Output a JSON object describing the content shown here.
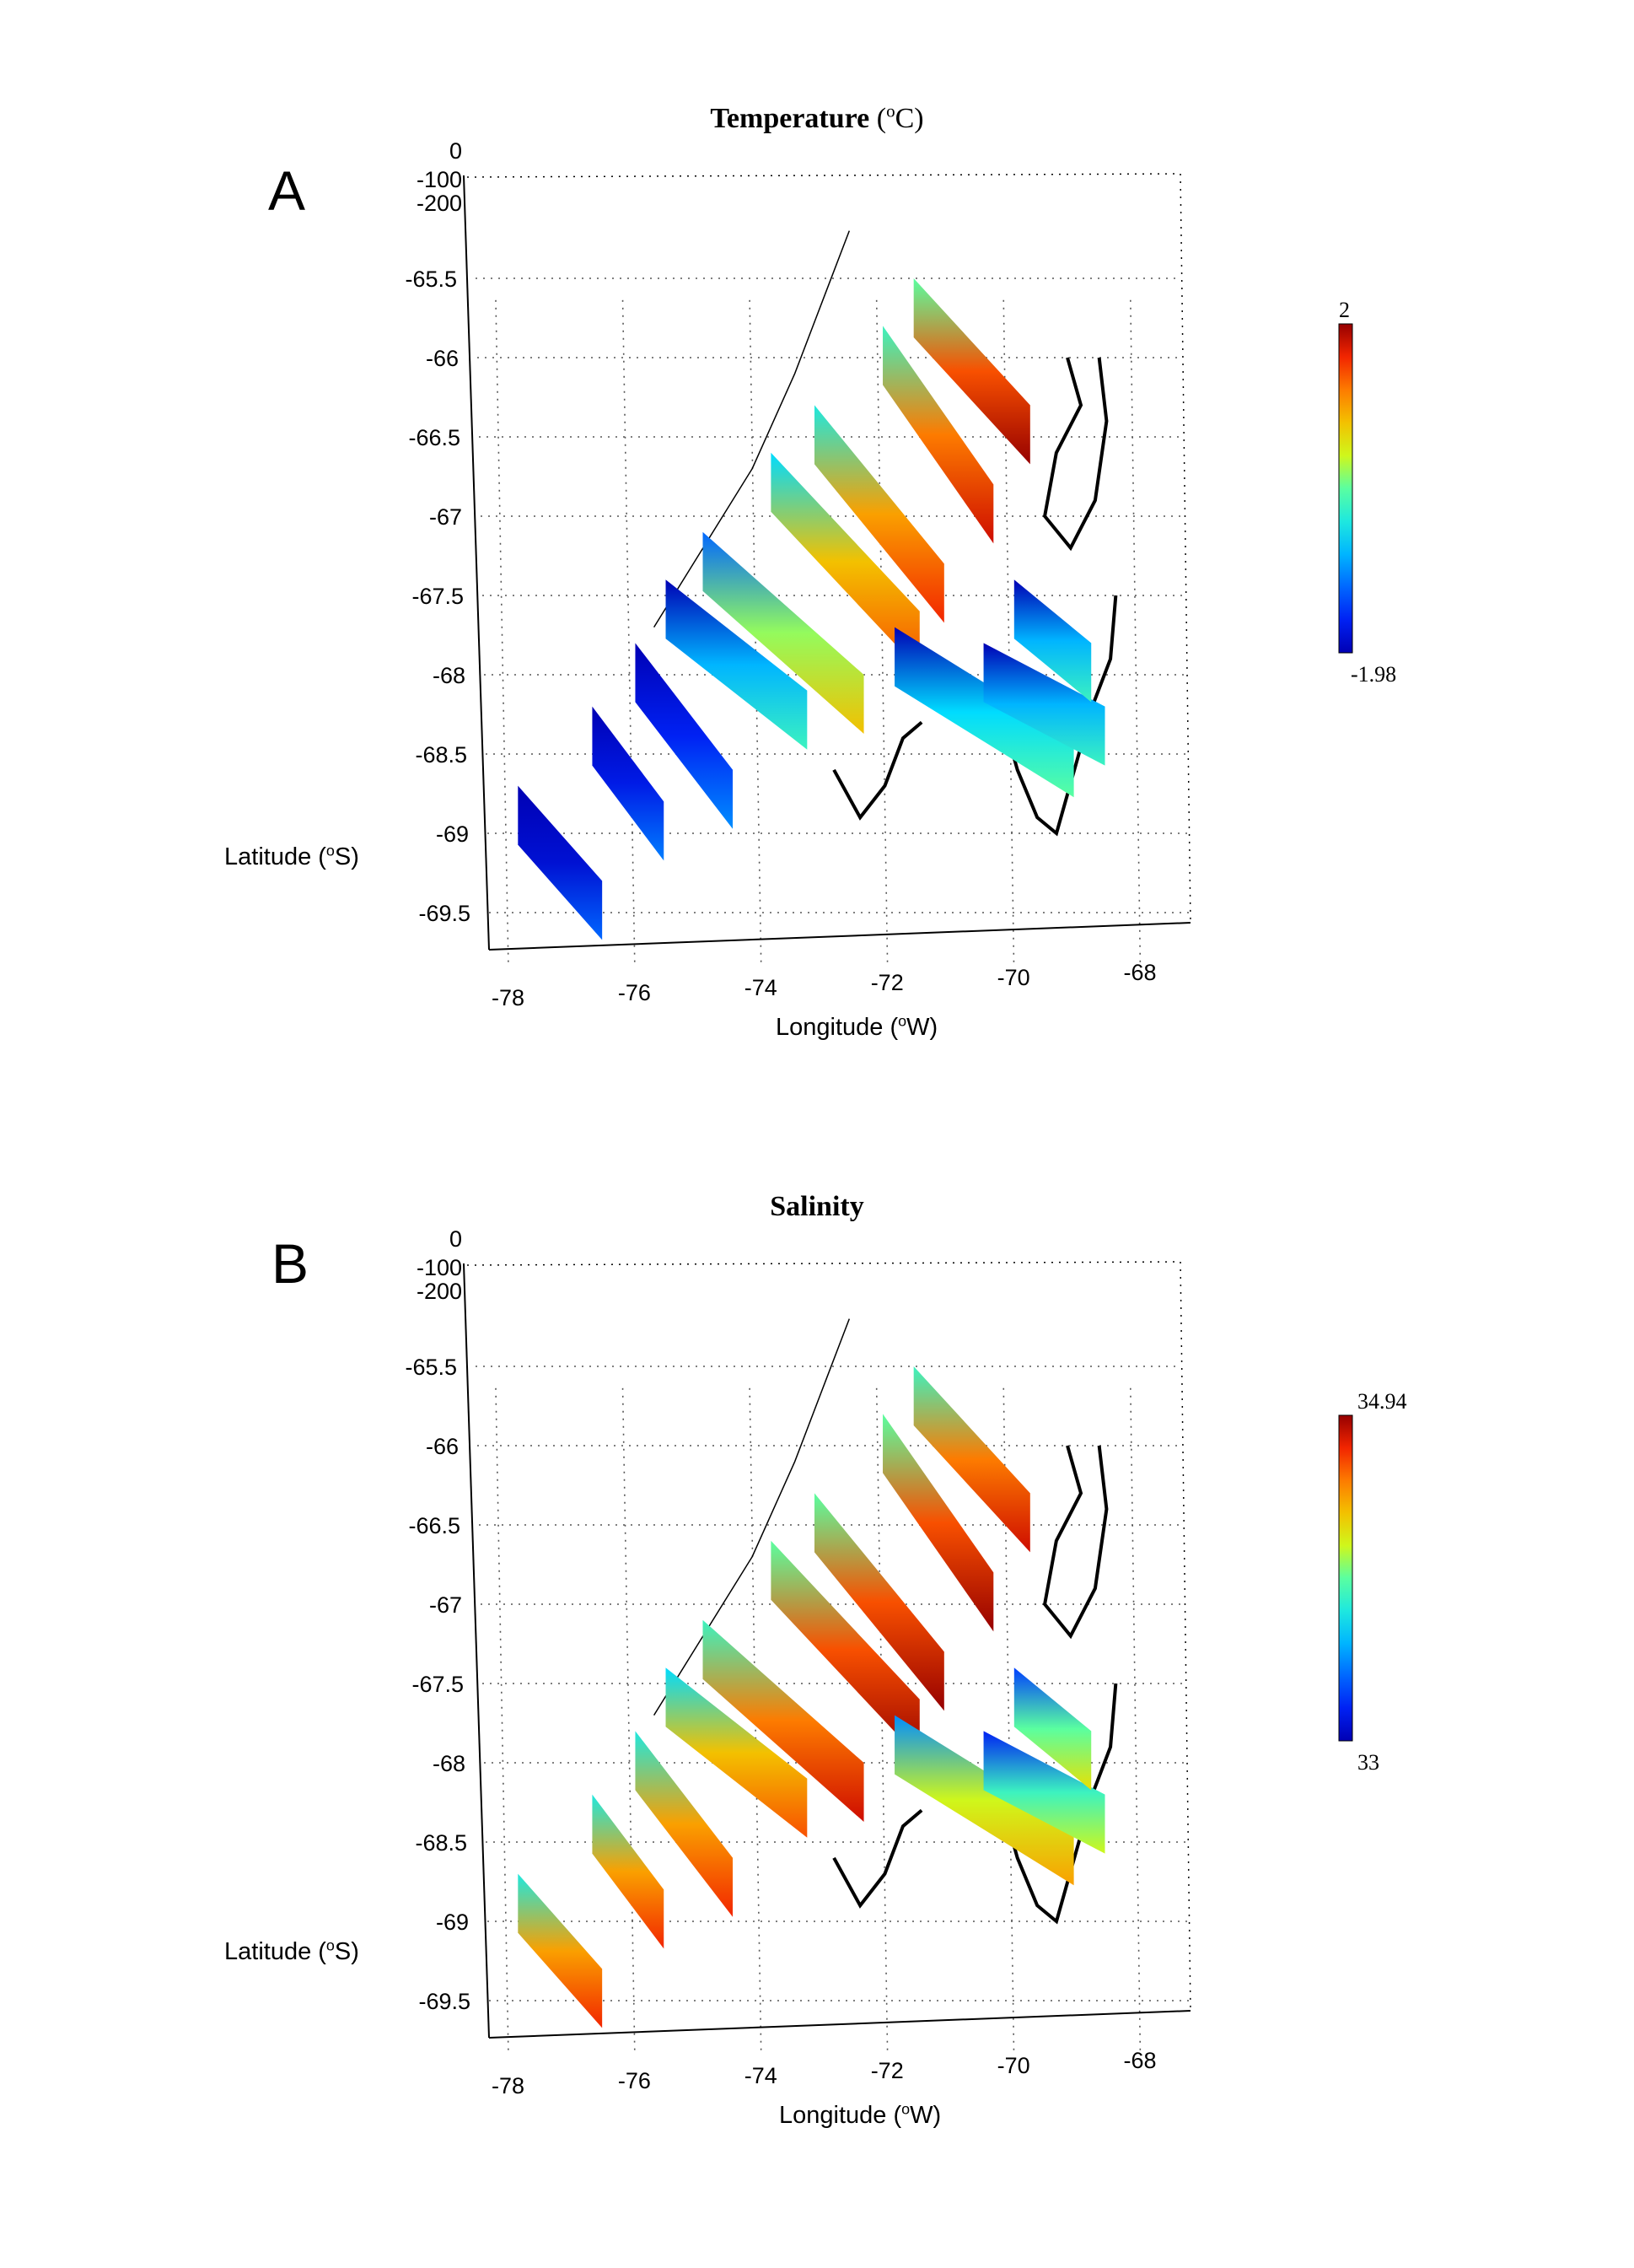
{
  "chart_data": [
    {
      "type": "heatmap",
      "panel_label": "A",
      "title": "Temperature",
      "title_unit_prefix": "(",
      "title_unit_sup": "o",
      "title_unit_suffix": "C)",
      "xlabel_text": "Longitude (",
      "xlabel_sup": "o",
      "xlabel_suffix": "W)",
      "ylabel_text": "Latitude (",
      "ylabel_sup": "o",
      "ylabel_suffix": "S)",
      "x_ticks": [
        -78,
        -76,
        -74,
        -72,
        -70,
        -68
      ],
      "y_ticks": [
        -65.5,
        -66,
        -66.5,
        -67,
        -67.5,
        -68,
        -68.5,
        -69,
        -69.5
      ],
      "z_ticks": [
        0,
        -100,
        -200
      ],
      "xlim": [
        -78.3,
        -67.2
      ],
      "ylim": [
        -69.7,
        -65.1
      ],
      "colorbar": {
        "max": 2,
        "min": -1.98,
        "max_label": "2",
        "min_label": "-1.98"
      },
      "grid": true,
      "transects": [
        {
          "lon": [
            -77.8,
            -76.5
          ],
          "lat": [
            -68.7,
            -69.3
          ],
          "level": 0.05
        },
        {
          "lon": [
            -76.6,
            -75.5
          ],
          "lat": [
            -68.2,
            -68.8
          ],
          "level": 0.08
        },
        {
          "lon": [
            -75.9,
            -74.4
          ],
          "lat": [
            -67.8,
            -68.6
          ],
          "level": 0.1
        },
        {
          "lon": [
            -75.4,
            -73.2
          ],
          "lat": [
            -67.4,
            -68.1
          ],
          "level": 0.3
        },
        {
          "lon": [
            -74.8,
            -72.3
          ],
          "lat": [
            -67.1,
            -68.0
          ],
          "level": 0.55
        },
        {
          "lon": [
            -73.7,
            -71.4
          ],
          "lat": [
            -66.6,
            -67.6
          ],
          "level": 0.7
        },
        {
          "lon": [
            -73.0,
            -71.0
          ],
          "lat": [
            -66.3,
            -67.3
          ],
          "level": 0.75
        },
        {
          "lon": [
            -71.9,
            -70.2
          ],
          "lat": [
            -65.8,
            -66.8
          ],
          "level": 0.8
        },
        {
          "lon": [
            -71.4,
            -69.6
          ],
          "lat": [
            -65.5,
            -66.3
          ],
          "level": 0.85
        },
        {
          "lon": [
            -71.8,
            -69.0
          ],
          "lat": [
            -67.7,
            -68.4
          ],
          "level": 0.35
        },
        {
          "lon": [
            -70.4,
            -68.5
          ],
          "lat": [
            -67.8,
            -68.2
          ],
          "level": 0.3
        },
        {
          "lon": [
            -69.9,
            -68.7
          ],
          "lat": [
            -67.4,
            -67.8
          ],
          "level": 0.3
        }
      ]
    },
    {
      "type": "heatmap",
      "panel_label": "B",
      "title": "Salinity",
      "title_unit_prefix": "",
      "title_unit_sup": "",
      "title_unit_suffix": "",
      "xlabel_text": "Longitude (",
      "xlabel_sup": "o",
      "xlabel_suffix": "W)",
      "ylabel_text": "Latitude (",
      "ylabel_sup": "o",
      "ylabel_suffix": "S)",
      "x_ticks": [
        -78,
        -76,
        -74,
        -72,
        -70,
        -68
      ],
      "y_ticks": [
        -65.5,
        -66,
        -66.5,
        -67,
        -67.5,
        -68,
        -68.5,
        -69,
        -69.5
      ],
      "z_ticks": [
        0,
        -100,
        -200
      ],
      "xlim": [
        -78.3,
        -67.2
      ],
      "ylim": [
        -69.7,
        -65.1
      ],
      "colorbar": {
        "max": 34.94,
        "min": 33,
        "max_label": "34.94",
        "min_label": "33"
      },
      "grid": true,
      "transects": [
        {
          "lon": [
            -77.8,
            -76.5
          ],
          "lat": [
            -68.7,
            -69.3
          ],
          "level": 0.75
        },
        {
          "lon": [
            -76.6,
            -75.5
          ],
          "lat": [
            -68.2,
            -68.8
          ],
          "level": 0.75
        },
        {
          "lon": [
            -75.9,
            -74.4
          ],
          "lat": [
            -67.8,
            -68.6
          ],
          "level": 0.75
        },
        {
          "lon": [
            -75.4,
            -73.2
          ],
          "lat": [
            -67.4,
            -68.1
          ],
          "level": 0.7
        },
        {
          "lon": [
            -74.8,
            -72.3
          ],
          "lat": [
            -67.1,
            -68.0
          ],
          "level": 0.8
        },
        {
          "lon": [
            -73.7,
            -71.4
          ],
          "lat": [
            -66.6,
            -67.6
          ],
          "level": 0.85
        },
        {
          "lon": [
            -73.0,
            -71.0
          ],
          "lat": [
            -66.3,
            -67.3
          ],
          "level": 0.85
        },
        {
          "lon": [
            -71.9,
            -70.2
          ],
          "lat": [
            -65.8,
            -66.8
          ],
          "level": 0.85
        },
        {
          "lon": [
            -71.4,
            -69.6
          ],
          "lat": [
            -65.5,
            -66.3
          ],
          "level": 0.8
        },
        {
          "lon": [
            -71.8,
            -69.0
          ],
          "lat": [
            -67.7,
            -68.4
          ],
          "level": 0.6
        },
        {
          "lon": [
            -70.4,
            -68.5
          ],
          "lat": [
            -67.8,
            -68.2
          ],
          "level": 0.45
        },
        {
          "lon": [
            -69.9,
            -68.7
          ],
          "lat": [
            -67.4,
            -67.8
          ],
          "level": 0.5
        }
      ]
    }
  ]
}
